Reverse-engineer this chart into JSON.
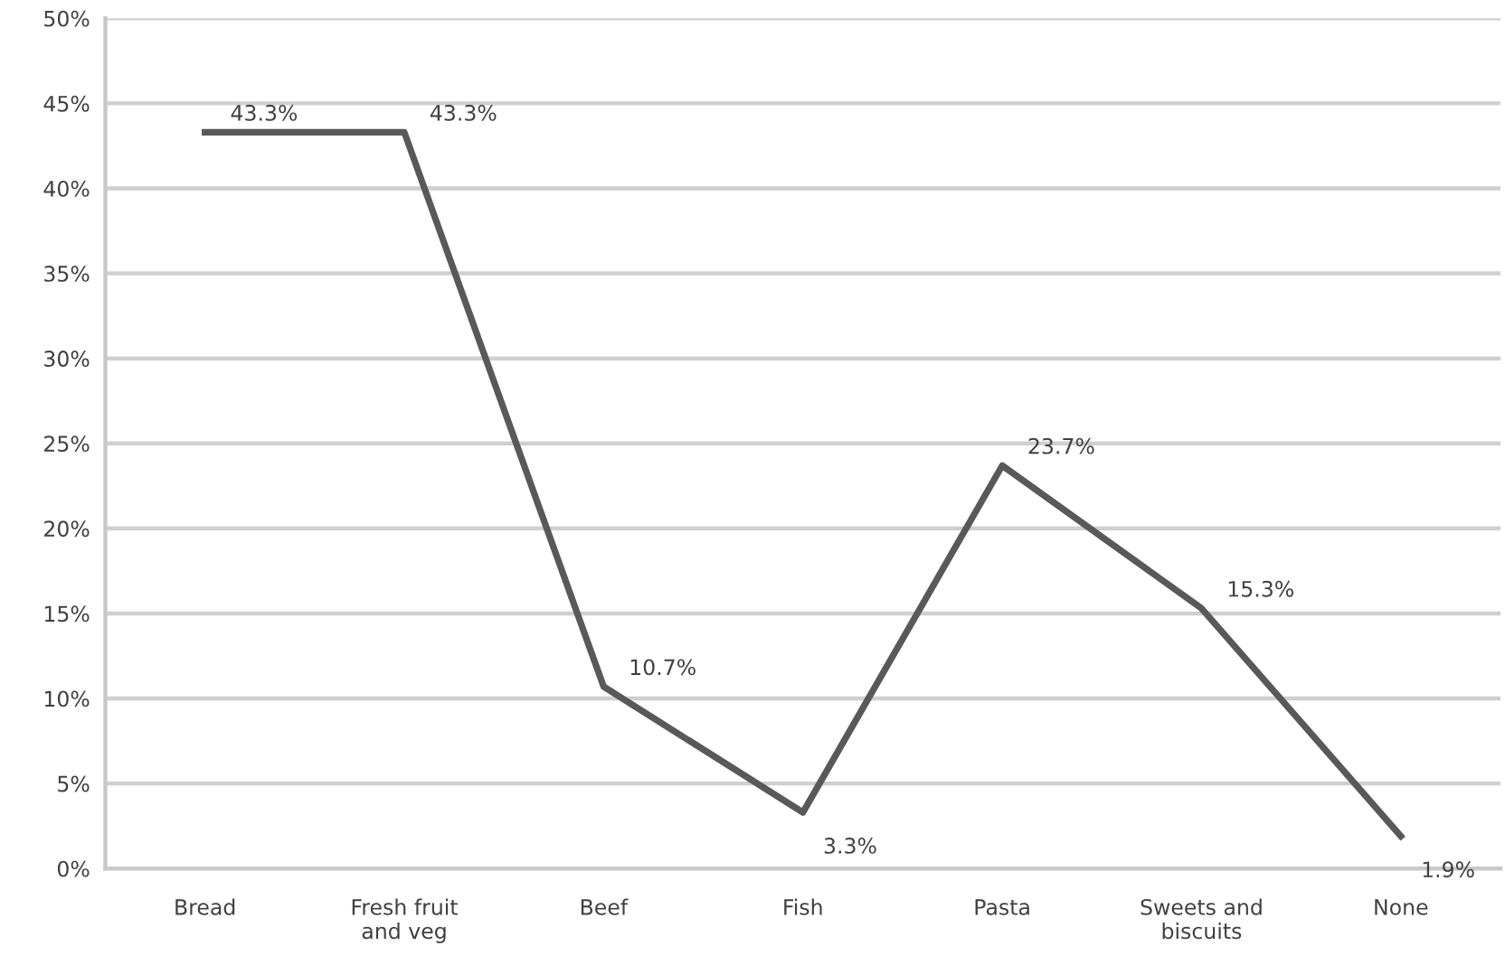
{
  "chart_data": {
    "type": "line",
    "categories": [
      "Bread",
      "Fresh fruit\nand veg",
      "Beef",
      "Fish",
      "Pasta",
      "Sweets and\nbiscuits",
      "None"
    ],
    "series": [
      {
        "color": "#595959",
        "values": [
          43.3,
          43.3,
          10.7,
          3.3,
          23.7,
          15.3,
          1.9
        ],
        "value_labels": [
          "43.3%",
          "43.3%",
          "10.7%",
          "3.3%",
          "23.7%",
          "15.3%",
          "1.9%"
        ]
      }
    ],
    "ylim": [
      0,
      50
    ],
    "yticks": [
      {
        "value": 0,
        "label": "0%"
      },
      {
        "value": 5,
        "label": "5%"
      },
      {
        "value": 10,
        "label": "10%"
      },
      {
        "value": 15,
        "label": "15%"
      },
      {
        "value": 20,
        "label": "20%"
      },
      {
        "value": 25,
        "label": "25%"
      },
      {
        "value": 30,
        "label": "30%"
      },
      {
        "value": 35,
        "label": "35%"
      },
      {
        "value": 40,
        "label": "40%"
      },
      {
        "value": 45,
        "label": "45%"
      },
      {
        "value": 50,
        "label": "50%"
      }
    ],
    "grid": "y",
    "marker": "none",
    "line_style": "solid"
  }
}
